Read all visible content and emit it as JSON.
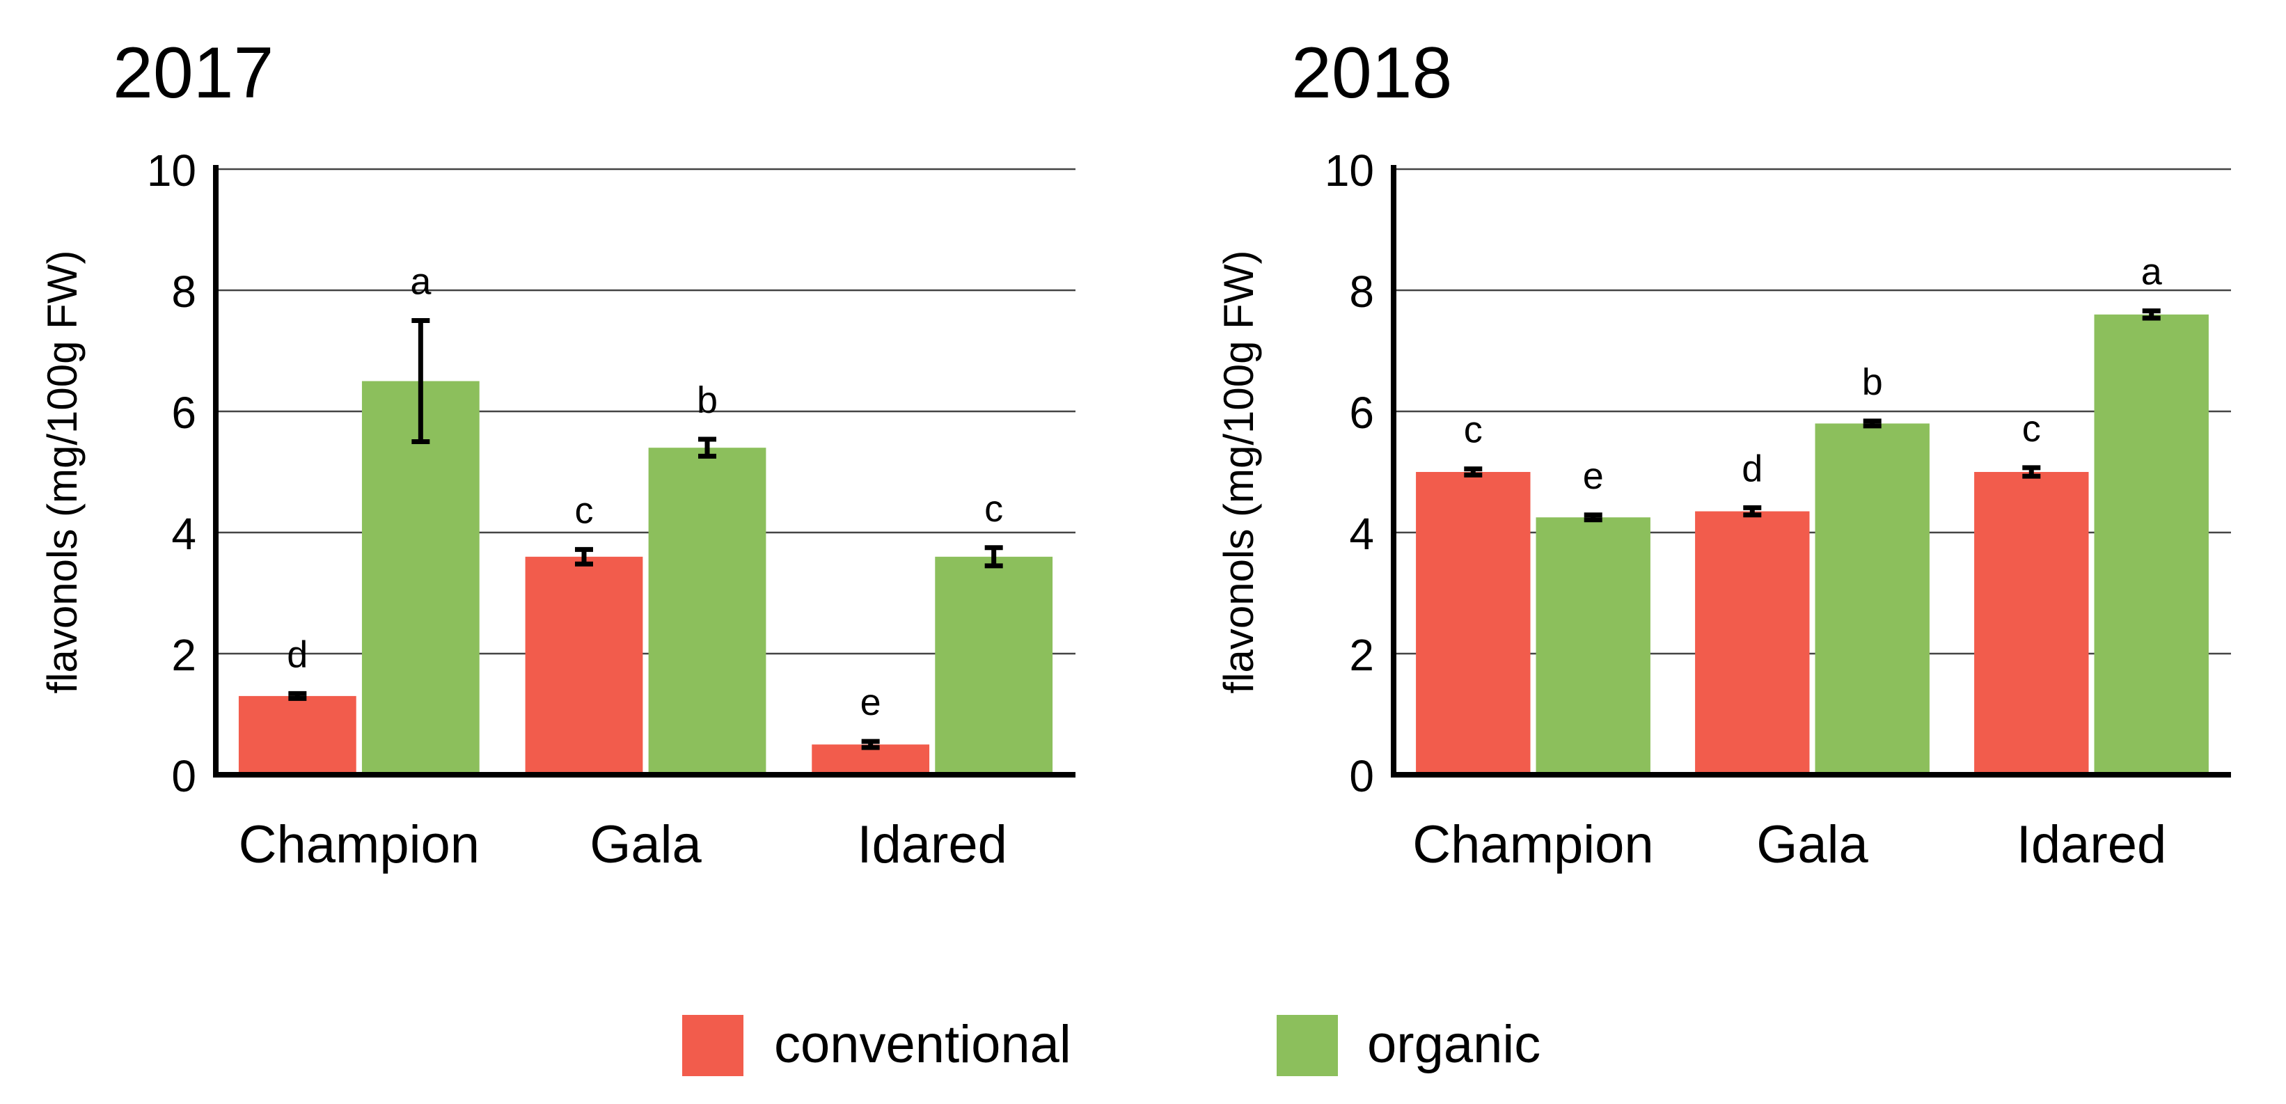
{
  "chart_data": [
    {
      "type": "bar",
      "title": "2017",
      "ylabel": "flavonols (mg/100g FW)",
      "ylim": [
        0,
        10
      ],
      "yticks": [
        0,
        2,
        4,
        6,
        8,
        10
      ],
      "grid": true,
      "categories": [
        "Champion",
        "Gala",
        "Idared"
      ],
      "series": [
        {
          "name": "conventional",
          "color": "#f25c4c",
          "values": [
            1.3,
            3.6,
            0.5
          ],
          "errors": [
            0.04,
            0.12,
            0.05
          ],
          "letters": [
            "d",
            "c",
            "e"
          ]
        },
        {
          "name": "organic",
          "color": "#8cbf5c",
          "values": [
            6.5,
            5.4,
            3.6
          ],
          "errors": [
            1.0,
            0.14,
            0.15
          ],
          "letters": [
            "a",
            "b",
            "c"
          ]
        }
      ]
    },
    {
      "type": "bar",
      "title": "2018",
      "ylabel": "flavonols (mg/100g FW)",
      "ylim": [
        0,
        10
      ],
      "yticks": [
        0,
        2,
        4,
        6,
        8,
        10
      ],
      "grid": true,
      "categories": [
        "Champion",
        "Gala",
        "Idared"
      ],
      "series": [
        {
          "name": "conventional",
          "color": "#f25c4c",
          "values": [
            5.0,
            4.35,
            5.0
          ],
          "errors": [
            0.05,
            0.06,
            0.07
          ],
          "letters": [
            "c",
            "d",
            "c"
          ]
        },
        {
          "name": "organic",
          "color": "#8cbf5c",
          "values": [
            4.25,
            5.8,
            7.6
          ],
          "errors": [
            0.04,
            0.04,
            0.06
          ],
          "letters": [
            "e",
            "b",
            "a"
          ]
        }
      ]
    }
  ],
  "legend": {
    "placement": "bottom-center",
    "items": [
      {
        "label": "conventional",
        "color": "#f25c4c"
      },
      {
        "label": "organic",
        "color": "#8cbf5c"
      }
    ]
  }
}
